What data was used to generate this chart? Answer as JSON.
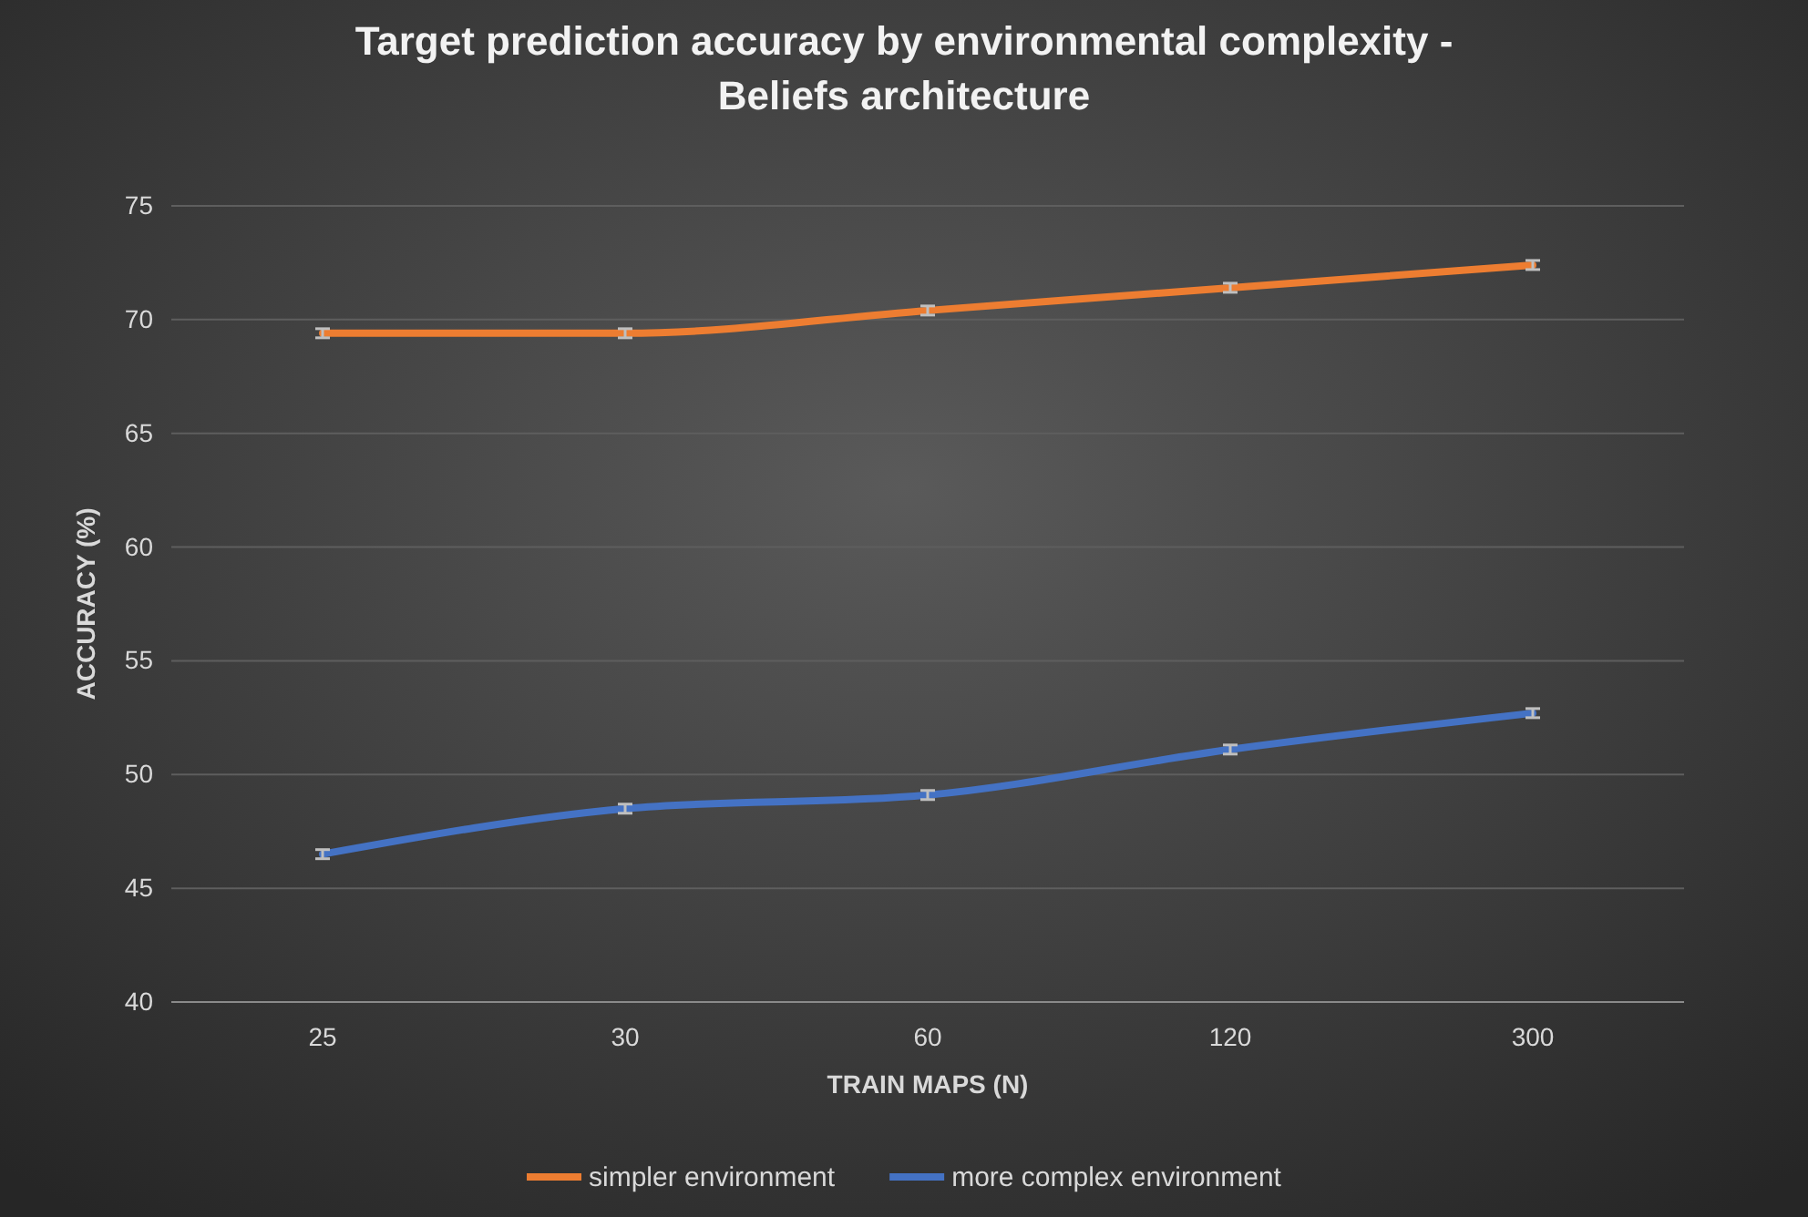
{
  "chart_data": {
    "type": "line",
    "title": "Target prediction accuracy by environmental complexity - Beliefs architecture",
    "xlabel": "TRAIN MAPS (N)",
    "ylabel": "ACCURACY (%)",
    "categories": [
      "25",
      "30",
      "60",
      "120",
      "300"
    ],
    "series": [
      {
        "name": "simpler environment",
        "color": "#ed7d31",
        "values": [
          69.4,
          69.4,
          70.4,
          71.4,
          72.4
        ],
        "errors": [
          0.2,
          0.2,
          0.2,
          0.2,
          0.2
        ]
      },
      {
        "name": "more complex environment",
        "color": "#4472c4",
        "values": [
          46.5,
          48.5,
          49.1,
          51.1,
          52.7
        ],
        "errors": [
          0.2,
          0.2,
          0.2,
          0.2,
          0.2
        ]
      }
    ],
    "ylim": [
      40,
      75
    ],
    "yticks": [
      40,
      45,
      50,
      55,
      60,
      65,
      70,
      75
    ],
    "grid": "y",
    "legend": "bottom",
    "marker": "none",
    "line_style": "solid"
  }
}
